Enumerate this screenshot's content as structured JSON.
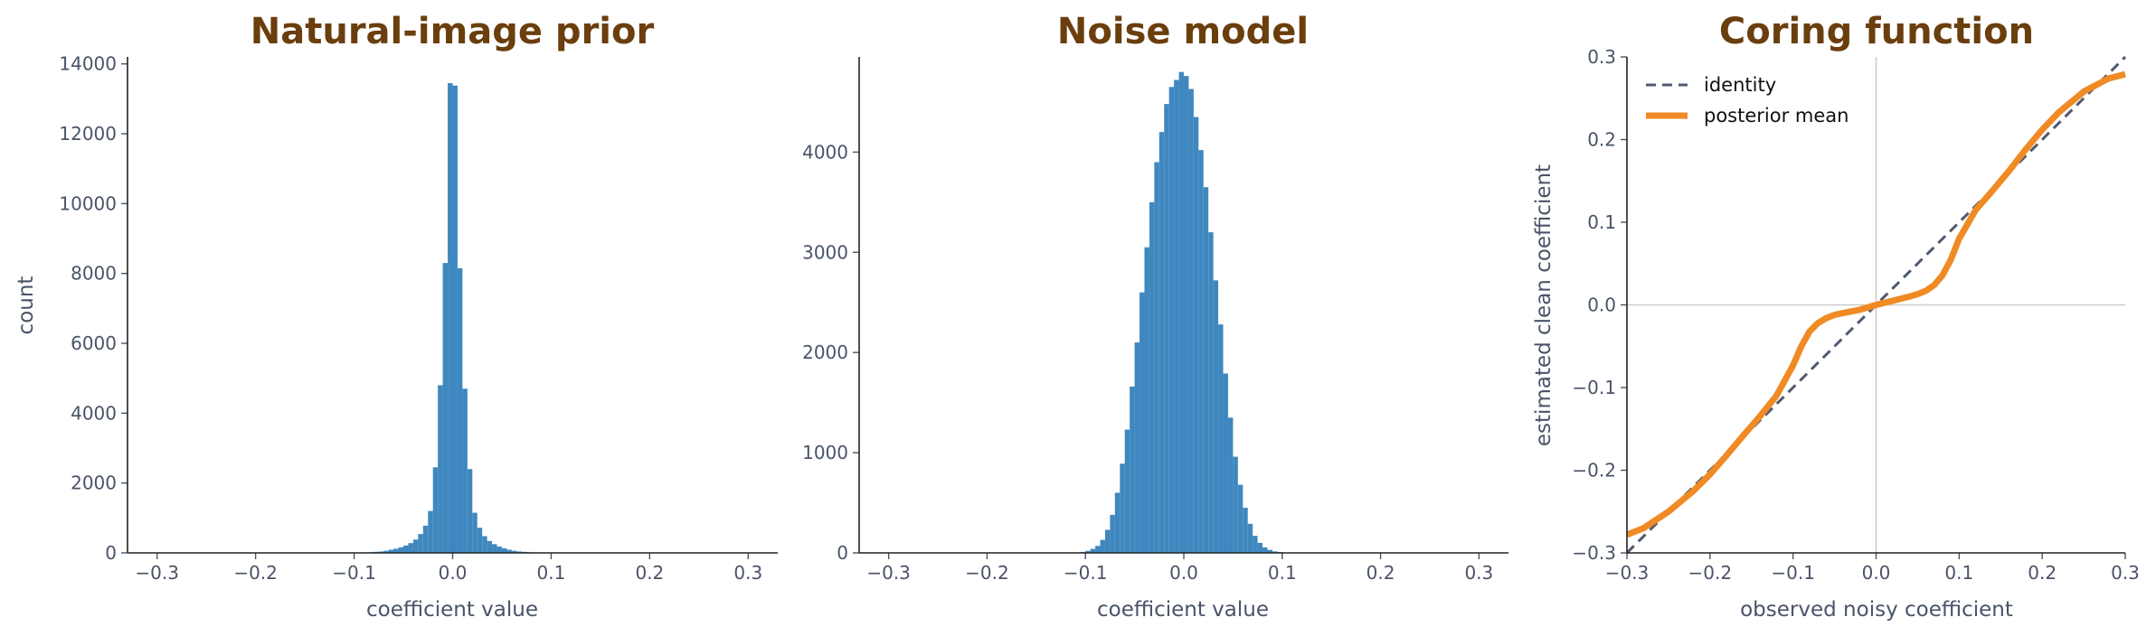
{
  "colors": {
    "title": "#6b3e0e",
    "hist": "#3f88bf",
    "identity": "#4f5a70",
    "posterior": "#f08a24",
    "zero_line": "#cccccc",
    "text": "#4a5468"
  },
  "chart_data": [
    {
      "type": "bar",
      "subtype": "histogram",
      "title": "Natural-image prior",
      "xlabel": "coefficient value",
      "ylabel": "count",
      "xlim": [
        -0.33,
        0.33
      ],
      "ylim": [
        0,
        14200
      ],
      "xticks": [
        "−0.3",
        "−0.2",
        "−0.1",
        "0.0",
        "0.1",
        "0.2",
        "0.3"
      ],
      "yticks": [
        "0",
        "2000",
        "4000",
        "6000",
        "8000",
        "10000",
        "12000",
        "14000"
      ],
      "bin_width": 0.005,
      "bin_centers": [
        -0.0825,
        -0.0775,
        -0.0725,
        -0.0675,
        -0.0625,
        -0.0575,
        -0.0525,
        -0.0475,
        -0.0425,
        -0.0375,
        -0.0325,
        -0.0275,
        -0.0225,
        -0.0175,
        -0.0125,
        -0.0075,
        -0.0025,
        0.0025,
        0.0075,
        0.0125,
        0.0175,
        0.0225,
        0.0275,
        0.0325,
        0.0375,
        0.0425,
        0.0475,
        0.0525,
        0.0575,
        0.0625,
        0.0675,
        0.0725,
        0.0775,
        0.0825
      ],
      "values": [
        20,
        30,
        40,
        60,
        90,
        120,
        160,
        210,
        280,
        380,
        540,
        780,
        1200,
        2450,
        4800,
        8300,
        13450,
        13380,
        8150,
        4700,
        2400,
        1150,
        720,
        480,
        340,
        250,
        180,
        130,
        90,
        60,
        40,
        30,
        20,
        15
      ]
    },
    {
      "type": "bar",
      "subtype": "histogram",
      "title": "Noise model",
      "xlabel": "coefficient value",
      "ylabel": "",
      "xlim": [
        -0.33,
        0.33
      ],
      "ylim": [
        0,
        4950
      ],
      "xticks": [
        "−0.3",
        "−0.2",
        "−0.1",
        "0.0",
        "0.1",
        "0.2",
        "0.3"
      ],
      "yticks": [
        "0",
        "1000",
        "2000",
        "3000",
        "4000"
      ],
      "bin_width": 0.005,
      "bin_centers": [
        -0.1025,
        -0.0975,
        -0.0925,
        -0.0875,
        -0.0825,
        -0.0775,
        -0.0725,
        -0.0675,
        -0.0625,
        -0.0575,
        -0.0525,
        -0.0475,
        -0.0425,
        -0.0375,
        -0.0325,
        -0.0275,
        -0.0225,
        -0.0175,
        -0.0125,
        -0.0075,
        -0.0025,
        0.0025,
        0.0075,
        0.0125,
        0.0175,
        0.0225,
        0.0275,
        0.0325,
        0.0375,
        0.0425,
        0.0475,
        0.0525,
        0.0575,
        0.0625,
        0.0675,
        0.0725,
        0.0775,
        0.0825,
        0.0875,
        0.0925,
        0.0975,
        0.1025
      ],
      "values": [
        10,
        20,
        40,
        70,
        130,
        230,
        380,
        600,
        890,
        1230,
        1660,
        2100,
        2600,
        3050,
        3500,
        3900,
        4200,
        4480,
        4650,
        4720,
        4800,
        4760,
        4630,
        4350,
        4020,
        3650,
        3200,
        2720,
        2280,
        1790,
        1350,
        960,
        680,
        450,
        290,
        170,
        100,
        55,
        30,
        15,
        8,
        4
      ]
    },
    {
      "type": "line",
      "title": "Coring function",
      "xlabel": "observed noisy coefficient",
      "ylabel": "estimated clean coefficient",
      "xlim": [
        -0.3,
        0.3
      ],
      "ylim": [
        -0.3,
        0.3
      ],
      "xticks": [
        "−0.3",
        "−0.2",
        "−0.1",
        "0.0",
        "0.1",
        "0.2",
        "0.3"
      ],
      "yticks": [
        "−0.3",
        "−0.2",
        "−0.1",
        "0.0",
        "0.1",
        "0.2",
        "0.3"
      ],
      "legend": {
        "placement": "upper-left"
      },
      "series": [
        {
          "name": "identity",
          "style": "dashed",
          "x": [
            -0.3,
            0.3
          ],
          "y": [
            -0.3,
            0.3
          ]
        },
        {
          "name": "posterior mean",
          "style": "solid",
          "x": [
            -0.3,
            -0.28,
            -0.25,
            -0.22,
            -0.2,
            -0.18,
            -0.16,
            -0.14,
            -0.12,
            -0.1,
            -0.09,
            -0.08,
            -0.07,
            -0.06,
            -0.05,
            -0.04,
            -0.02,
            0.0,
            0.02,
            0.04,
            0.05,
            0.06,
            0.07,
            0.08,
            0.09,
            0.1,
            0.12,
            0.14,
            0.16,
            0.18,
            0.2,
            0.22,
            0.25,
            0.28,
            0.3
          ],
          "y": [
            -0.278,
            -0.27,
            -0.25,
            -0.225,
            -0.205,
            -0.182,
            -0.158,
            -0.135,
            -0.11,
            -0.073,
            -0.05,
            -0.032,
            -0.022,
            -0.016,
            -0.012,
            -0.01,
            -0.006,
            0.0,
            0.005,
            0.01,
            0.013,
            0.017,
            0.024,
            0.036,
            0.055,
            0.08,
            0.115,
            0.138,
            0.162,
            0.188,
            0.212,
            0.233,
            0.258,
            0.274,
            0.279
          ]
        }
      ]
    }
  ]
}
